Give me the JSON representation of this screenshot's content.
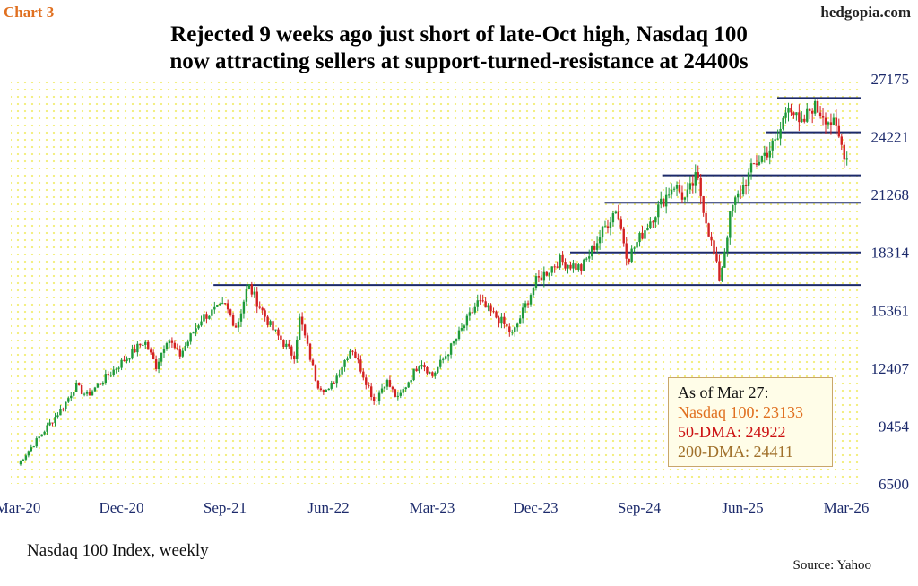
{
  "header": {
    "chart_label": "Chart 3",
    "site": "hedgopia.com",
    "title_line1": "Rejected 9 weeks ago just short of late-Oct high, Nasdaq 100",
    "title_line2": "now attracting sellers at support-turned-resistance at 24400s"
  },
  "footer": {
    "caption": "Nasdaq 100 Index, weekly",
    "source": "Source: Yahoo"
  },
  "legend": {
    "heading": "As of Mar 27:",
    "nasdaq": "Nasdaq 100: 23133",
    "dma50": "50-DMA: 24922",
    "dma200": "200-DMA: 24411"
  },
  "colors": {
    "up": "#1f9a3a",
    "down": "#d32222",
    "levels": "#1c2a6b",
    "dots": "#f2ee7a",
    "nasdaq_text": "#e07020",
    "dma50_text": "#cc1111",
    "dma200_text": "#a0702a",
    "axis_text": "#1c2a6b"
  },
  "chart_data": {
    "type": "candlestick",
    "frequency": "weekly",
    "x_tick_labels": [
      "Mar-20",
      "Dec-20",
      "Sep-21",
      "Jun-22",
      "Mar-23",
      "Dec-23",
      "Sep-24",
      "Jun-25",
      "Mar-26"
    ],
    "y_tick_labels": [
      27175,
      24221,
      21268,
      18314,
      15361,
      12407,
      9454,
      6500
    ],
    "ylim": [
      6500,
      27175
    ],
    "horizontal_levels": [
      {
        "value": 26200,
        "from": "Sep-25",
        "to": "Mar-26"
      },
      {
        "value": 24450,
        "from": "Aug-25",
        "to": "Mar-26"
      },
      {
        "value": 22250,
        "from": "Nov-24",
        "to": "Mar-26"
      },
      {
        "value": 20850,
        "from": "Jun-24",
        "to": "Mar-26"
      },
      {
        "value": 18314,
        "from": "Mar-24",
        "to": "Mar-26"
      },
      {
        "value": 16650,
        "from": "Aug-21",
        "to": "Mar-26"
      }
    ],
    "path": [
      [
        "Mar-20",
        7500
      ],
      [
        "Jul-20",
        10500
      ],
      [
        "Aug-20",
        11500
      ],
      [
        "Sep-20",
        11000
      ],
      [
        "Dec-20",
        12700
      ],
      [
        "Feb-21",
        13800
      ],
      [
        "Mar-21",
        12500
      ],
      [
        "Apr-21",
        14000
      ],
      [
        "May-21",
        13000
      ],
      [
        "Jul-21",
        15000
      ],
      [
        "Sep-21",
        15600
      ],
      [
        "Oct-21",
        14500
      ],
      [
        "Nov-21",
        16650
      ],
      [
        "Jan-22",
        14500
      ],
      [
        "Mar-22",
        13000
      ],
      [
        "Mar-22b",
        15000
      ],
      [
        "May-22",
        11600
      ],
      [
        "Jun-22",
        11200
      ],
      [
        "Aug-22",
        13500
      ],
      [
        "Oct-22",
        10700
      ],
      [
        "Nov-22",
        11800
      ],
      [
        "Dec-22",
        10800
      ],
      [
        "Feb-23",
        12800
      ],
      [
        "Mar-23",
        12000
      ],
      [
        "May-23",
        13800
      ],
      [
        "Jul-23",
        15800
      ],
      [
        "Sep-23",
        14800
      ],
      [
        "Oct-23",
        14100
      ],
      [
        "Dec-23",
        16800
      ],
      [
        "Feb-24",
        17900
      ],
      [
        "Apr-24",
        17500
      ],
      [
        "Jul-24",
        20600
      ],
      [
        "Aug-24",
        18000
      ],
      [
        "Oct-24",
        20000
      ],
      [
        "Dec-24",
        21800
      ],
      [
        "Jan-25",
        21000
      ],
      [
        "Feb-25",
        22200
      ],
      [
        "Mar-25",
        19500
      ],
      [
        "Apr-25",
        16900
      ],
      [
        "May-25",
        20500
      ],
      [
        "Jul-25",
        22800
      ],
      [
        "Sep-25",
        24000
      ],
      [
        "Oct-25",
        26100
      ],
      [
        "Nov-25",
        24600
      ],
      [
        "Dec-25",
        25800
      ],
      [
        "Jan-26",
        25400
      ],
      [
        "Feb-26",
        24700
      ],
      [
        "Mar-26",
        23133
      ]
    ]
  }
}
